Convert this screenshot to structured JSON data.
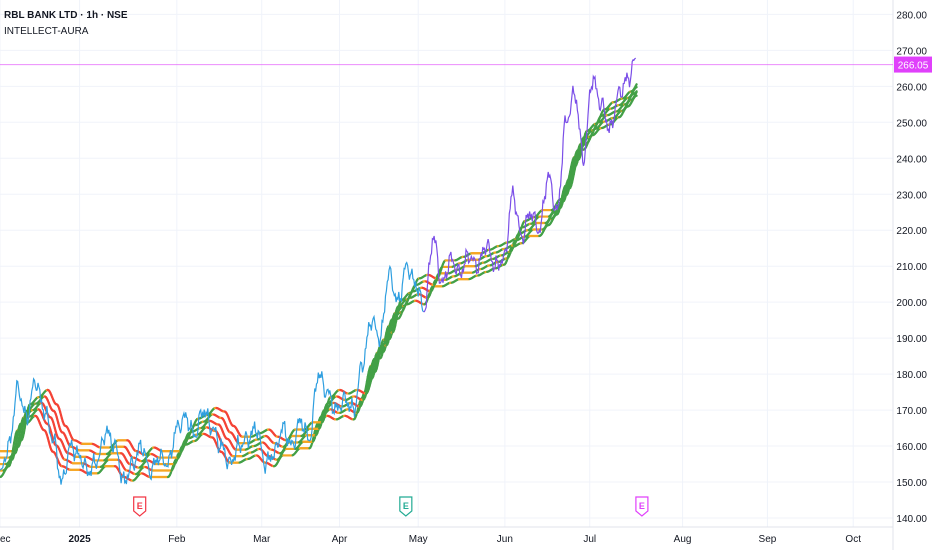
{
  "legend": {
    "symbol_line": "RBL BANK LTD · 1h · NSE",
    "indicator": "INTELLECT-AURA"
  },
  "colors": {
    "price_early": "#2f9fe0",
    "price_late": "#7b4fe8",
    "band_up": "#43a047",
    "band_down": "#f44336",
    "band_neutral": "#f5a623",
    "price_line": "#e040fb",
    "earnings_red": "#f23645",
    "earnings_green": "#22ab94",
    "earnings_purple": "#e040fb"
  },
  "chart_data": {
    "type": "line",
    "title": "RBL BANK LTD · 1h · NSE",
    "ylim": [
      137.5,
      284
    ],
    "y_ticks": [
      140,
      150,
      160,
      170,
      180,
      190,
      200,
      210,
      220,
      230,
      240,
      250,
      260,
      270,
      280
    ],
    "y_tick_labels": [
      "140.00",
      "150.00",
      "160.00",
      "170.00",
      "180.00",
      "190.00",
      "200.00",
      "210.00",
      "220.00",
      "230.00",
      "240.00",
      "250.00",
      "260.00",
      "270.00",
      "280.00"
    ],
    "x_ticks": [
      {
        "label": "ec",
        "t": 0.0
      },
      {
        "label": "2025",
        "t": 9.0,
        "bold": true
      },
      {
        "label": "Feb",
        "t": 20.0
      },
      {
        "label": "Mar",
        "t": 29.6
      },
      {
        "label": "Apr",
        "t": 38.4
      },
      {
        "label": "May",
        "t": 47.3
      },
      {
        "label": "Jun",
        "t": 57.1
      },
      {
        "label": "Jul",
        "t": 66.7
      },
      {
        "label": "Aug",
        "t": 77.2
      },
      {
        "label": "Sep",
        "t": 86.8
      },
      {
        "label": "Oct",
        "t": 96.5
      }
    ],
    "current_price": 266.05,
    "current_price_label": "266.05",
    "earnings_markers": [
      {
        "label": "E",
        "t": 15.8,
        "color": "#f23645"
      },
      {
        "label": "E",
        "t": 45.9,
        "color": "#22ab94"
      },
      {
        "label": "E",
        "t": 72.6,
        "color": "#e040fb"
      }
    ],
    "series": [
      {
        "type": "price",
        "t": [
          0,
          1,
          2,
          3,
          4,
          5,
          6,
          7,
          8,
          9,
          10,
          11,
          12,
          13,
          14,
          15,
          16,
          17,
          18,
          19,
          20,
          21,
          22,
          23,
          24,
          25,
          26,
          27,
          28,
          29,
          30,
          31,
          32,
          33,
          34,
          35,
          36,
          37,
          38,
          39,
          40,
          41,
          42,
          43,
          44,
          45,
          46,
          47,
          48,
          49,
          50,
          51,
          52,
          53,
          54,
          55,
          56,
          57,
          58,
          59,
          60,
          61,
          62,
          63,
          64,
          65,
          66,
          67,
          68,
          69,
          70,
          71,
          72
        ],
        "values": [
          152,
          160,
          176,
          168,
          178,
          170,
          162,
          150,
          160,
          157,
          153,
          156,
          164,
          160,
          150,
          155,
          160,
          153,
          157,
          155,
          165,
          168,
          163,
          170,
          165,
          160,
          155,
          160,
          162,
          165,
          155,
          158,
          165,
          160,
          167,
          162,
          180,
          175,
          170,
          173,
          170,
          183,
          195,
          190,
          208,
          200,
          210,
          205,
          198,
          218,
          205,
          212,
          208,
          213,
          210,
          216,
          210,
          212,
          230,
          218,
          225,
          220,
          235,
          225,
          250,
          258,
          240,
          262,
          255,
          248,
          258,
          262,
          268
        ],
        "hourly_amplitude": 2.5
      },
      {
        "type": "band",
        "t": [
          0,
          1,
          2,
          3,
          4,
          5,
          6,
          7,
          8,
          9,
          10,
          11,
          12,
          13,
          14,
          15,
          16,
          17,
          18,
          19,
          20,
          21,
          22,
          23,
          24,
          25,
          26,
          27,
          28,
          29,
          30,
          31,
          32,
          33,
          34,
          35,
          36,
          37,
          38,
          39,
          40,
          41,
          42,
          43,
          44,
          45,
          46,
          47,
          48,
          49,
          50,
          51,
          52,
          53,
          54,
          55,
          56,
          57,
          58,
          59,
          60,
          61,
          62,
          63,
          64,
          65,
          66,
          67,
          68,
          69,
          70,
          71,
          72
        ],
        "values": [
          155,
          158,
          168,
          170,
          172,
          168,
          162,
          158,
          157,
          157,
          156,
          156,
          158,
          158,
          155,
          154,
          156,
          155,
          155,
          155,
          160,
          164,
          165,
          167,
          166,
          162,
          159,
          159,
          160,
          161,
          159,
          158,
          161,
          161,
          163,
          163,
          170,
          172,
          171,
          172,
          171,
          177,
          186,
          188,
          197,
          199,
          203,
          204,
          203,
          208,
          208,
          209,
          210,
          210,
          211,
          212,
          213,
          214,
          219,
          220,
          222,
          222,
          225,
          228,
          236,
          244,
          246,
          250,
          252,
          253,
          255,
          258,
          261
        ],
        "spread": 1.8
      }
    ]
  }
}
